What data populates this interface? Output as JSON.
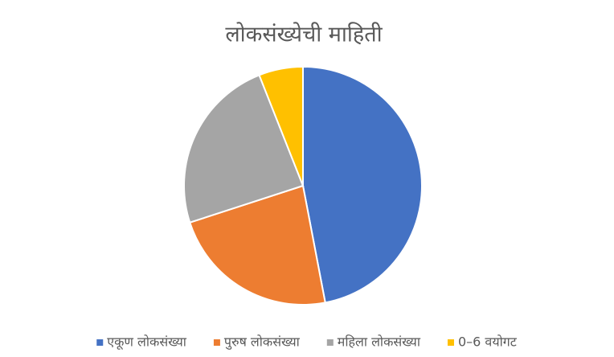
{
  "chart_data": {
    "type": "pie",
    "title": "लोकसंख्येची माहिती",
    "categories": [
      "एकूण लोकसंख्या",
      "पुरुष लोकसंख्या",
      "महिला लोकसंख्या",
      "0–6  वयोगट"
    ],
    "values": [
      47,
      23,
      24,
      6
    ],
    "colors": [
      "#4472c4",
      "#ed7d31",
      "#a5a5a5",
      "#ffc000"
    ],
    "legend": "bottom"
  }
}
